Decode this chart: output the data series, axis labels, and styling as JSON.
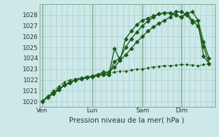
{
  "title": "Pression niveau de la mer( hPa )",
  "bg_color": "#cce8e8",
  "grid_color": "#aacccc",
  "line_color": "#1a5c1a",
  "ylim": [
    1019.5,
    1029.0
  ],
  "yticks": [
    1020,
    1021,
    1022,
    1023,
    1024,
    1025,
    1026,
    1027,
    1028
  ],
  "xtick_labels": [
    "Ven",
    "Lun",
    "Sam",
    "Dim"
  ],
  "xtick_positions": [
    0,
    9,
    18,
    25
  ],
  "xlim": [
    -0.5,
    31
  ],
  "vlines": [
    0,
    9,
    18,
    25
  ],
  "series": [
    {
      "x": [
        0,
        1,
        2,
        3,
        4,
        5,
        6,
        7,
        8,
        9,
        10,
        11,
        12,
        13,
        14,
        15,
        16,
        17,
        18,
        19,
        20,
        21,
        22,
        23,
        24,
        25,
        26,
        27,
        28,
        29,
        30
      ],
      "y": [
        1020.0,
        1020.4,
        1020.7,
        1021.1,
        1021.5,
        1021.8,
        1022.0,
        1022.1,
        1022.2,
        1022.3,
        1022.4,
        1022.5,
        1022.5,
        1024.9,
        1023.8,
        1025.8,
        1026.5,
        1027.1,
        1027.5,
        1027.7,
        1027.9,
        1028.1,
        1028.2,
        1028.2,
        1028.0,
        1027.8,
        1028.2,
        1027.5,
        1027.0,
        1025.1,
        1023.5
      ],
      "style": "-",
      "marker": "D",
      "markersize": 2.5,
      "linewidth": 1.0
    },
    {
      "x": [
        0,
        1,
        2,
        3,
        4,
        5,
        6,
        7,
        8,
        9,
        10,
        11,
        12,
        13,
        14,
        15,
        16,
        17,
        18,
        19,
        20,
        21,
        22,
        23,
        24,
        25,
        26,
        27,
        28,
        29,
        30
      ],
      "y": [
        1020.0,
        1020.4,
        1020.8,
        1021.2,
        1021.5,
        1021.7,
        1022.0,
        1022.1,
        1022.2,
        1022.3,
        1022.4,
        1022.5,
        1022.5,
        1023.7,
        1024.0,
        1025.0,
        1025.8,
        1026.4,
        1027.0,
        1027.4,
        1027.8,
        1028.1,
        1028.2,
        1028.2,
        1028.0,
        1027.8,
        1028.1,
        1028.3,
        1027.5,
        1024.2,
        1023.5
      ],
      "style": "-",
      "marker": "D",
      "markersize": 2.5,
      "linewidth": 1.0
    },
    {
      "x": [
        0,
        1,
        2,
        3,
        4,
        5,
        6,
        7,
        8,
        9,
        10,
        11,
        12,
        13,
        14,
        15,
        16,
        17,
        18,
        19,
        20,
        21,
        22,
        23,
        24,
        25,
        26,
        27,
        28,
        29,
        30
      ],
      "y": [
        1020.0,
        1020.4,
        1020.8,
        1021.1,
        1021.5,
        1021.8,
        1022.0,
        1022.1,
        1022.2,
        1022.3,
        1022.5,
        1022.7,
        1022.7,
        1023.2,
        1023.8,
        1024.3,
        1024.9,
        1025.5,
        1026.0,
        1026.5,
        1026.9,
        1027.2,
        1027.5,
        1027.8,
        1028.3,
        1028.3,
        1028.0,
        1027.3,
        1027.5,
        1025.5,
        1024.0
      ],
      "style": "-",
      "marker": "D",
      "markersize": 2.5,
      "linewidth": 1.0
    },
    {
      "x": [
        0,
        1,
        2,
        3,
        4,
        5,
        6,
        7,
        8,
        9,
        10,
        11,
        12,
        13,
        14,
        15,
        16,
        17,
        18,
        19,
        20,
        21,
        22,
        23,
        24,
        25,
        26,
        27,
        28,
        29,
        30
      ],
      "y": [
        1020.1,
        1020.5,
        1021.0,
        1021.4,
        1021.8,
        1022.0,
        1022.1,
        1022.2,
        1022.3,
        1022.4,
        1022.5,
        1022.6,
        1022.6,
        1022.7,
        1022.8,
        1022.8,
        1022.9,
        1023.0,
        1023.0,
        1023.1,
        1023.2,
        1023.25,
        1023.3,
        1023.3,
        1023.35,
        1023.4,
        1023.4,
        1023.35,
        1023.3,
        1023.4,
        1023.5
      ],
      "style": "-",
      "marker": "D",
      "markersize": 1.5,
      "linewidth": 0.7,
      "dash": true
    }
  ]
}
